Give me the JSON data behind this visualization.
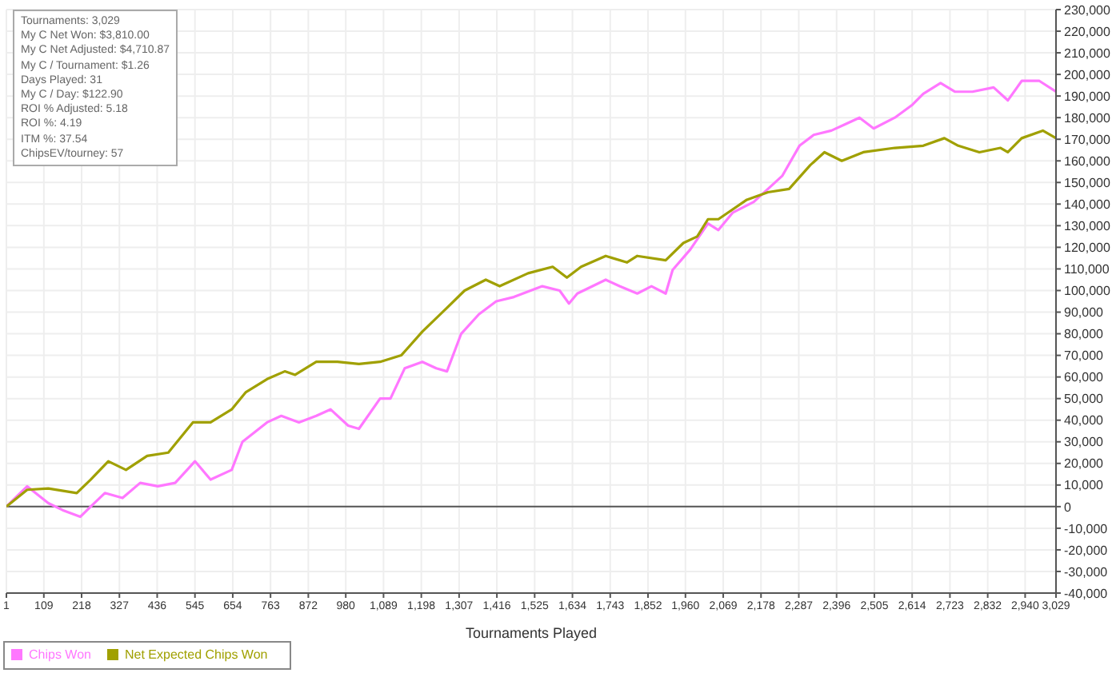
{
  "chart_data": {
    "type": "line",
    "xlabel": "Tournaments Played",
    "annotations": [
      "Tournaments: 3,029",
      "My C Net Won: $3,810.00",
      "My C Net Adjusted: $4,710.87",
      "My C / Tournament: $1.26",
      "Days Played: 31",
      "My C / Day: $122.90",
      "ROI % Adjusted: 5.18",
      "ROI %: 4.19",
      "ITM %: 37.54",
      "ChipsEV/tourney: 57"
    ],
    "xlim": [
      1,
      3029
    ],
    "xticks": [
      1,
      109,
      218,
      327,
      436,
      545,
      654,
      763,
      872,
      980,
      {
        "value": 1089,
        "label": "1,089"
      },
      {
        "value": 1198,
        "label": "1,198"
      },
      {
        "value": 1307,
        "label": "1,307"
      },
      {
        "value": 1416,
        "label": "1,416"
      },
      {
        "value": 1525,
        "label": "1,525"
      },
      {
        "value": 1634,
        "label": "1,634"
      },
      {
        "value": 1743,
        "label": "1,743"
      },
      {
        "value": 1852,
        "label": "1,852"
      },
      {
        "value": 1960,
        "label": "1,960"
      },
      {
        "value": 2069,
        "label": "2,069"
      },
      {
        "value": 2178,
        "label": "2,178"
      },
      {
        "value": 2287,
        "label": "2,287"
      },
      {
        "value": 2396,
        "label": "2,396"
      },
      {
        "value": 2505,
        "label": "2,505"
      },
      {
        "value": 2614,
        "label": "2,614"
      },
      {
        "value": 2723,
        "label": "2,723"
      },
      {
        "value": 2832,
        "label": "2,832"
      },
      {
        "value": 2940,
        "label": "2,940"
      },
      {
        "value": 3029,
        "label": "3,029"
      }
    ],
    "ylim": [
      -40000,
      230000
    ],
    "yticks": [
      {
        "value": -40000,
        "label": "-40,000"
      },
      {
        "value": -30000,
        "label": "-30,000"
      },
      {
        "value": -20000,
        "label": "-20,000"
      },
      {
        "value": -10000,
        "label": "-10,000"
      },
      0,
      {
        "value": 10000,
        "label": "10,000"
      },
      {
        "value": 20000,
        "label": "20,000"
      },
      {
        "value": 30000,
        "label": "30,000"
      },
      {
        "value": 40000,
        "label": "40,000"
      },
      {
        "value": 50000,
        "label": "50,000"
      },
      {
        "value": 60000,
        "label": "60,000"
      },
      {
        "value": 70000,
        "label": "70,000"
      },
      {
        "value": 80000,
        "label": "80,000"
      },
      {
        "value": 90000,
        "label": "90,000"
      },
      {
        "value": 100000,
        "label": "100,000"
      },
      {
        "value": 110000,
        "label": "110,000"
      },
      {
        "value": 120000,
        "label": "120,000"
      },
      {
        "value": 130000,
        "label": "130,000"
      },
      {
        "value": 140000,
        "label": "140,000"
      },
      {
        "value": 150000,
        "label": "150,000"
      },
      {
        "value": 160000,
        "label": "160,000"
      },
      {
        "value": 170000,
        "label": "170,000"
      },
      {
        "value": 180000,
        "label": "180,000"
      },
      {
        "value": 190000,
        "label": "190,000"
      },
      {
        "value": 200000,
        "label": "200,000"
      },
      {
        "value": 210000,
        "label": "210,000"
      },
      {
        "value": 220000,
        "label": "220,000"
      },
      {
        "value": 230000,
        "label": "230,000"
      }
    ],
    "grid": true,
    "legend": "bottom left",
    "marker": "none",
    "line_style": "solid",
    "ref_lines": [
      {
        "axis": "y",
        "value": 0,
        "color": "#555555"
      }
    ],
    "series": [
      {
        "name": "Chips Won",
        "color": "#ff77ff",
        "x": [
          1,
          61,
          122,
          163,
          214,
          244,
          285,
          336,
          387,
          438,
          488,
          545,
          590,
          651,
          682,
          753,
          794,
          845,
          895,
          936,
          987,
          1018,
          1079,
          1109,
          1150,
          1201,
          1241,
          1272,
          1313,
          1364,
          1414,
          1465,
          1547,
          1597,
          1624,
          1648,
          1730,
          1770,
          1821,
          1862,
          1903,
          1923,
          1974,
          2025,
          2055,
          2096,
          2157,
          2198,
          2239,
          2289,
          2330,
          2381,
          2422,
          2462,
          2503,
          2564,
          2615,
          2646,
          2696,
          2737,
          2788,
          2849,
          2890,
          2930,
          2981,
          3029
        ],
        "values": [
          0,
          9400,
          1600,
          -1600,
          -4700,
          0,
          6300,
          4000,
          11000,
          9400,
          11000,
          21000,
          12500,
          17000,
          30000,
          39000,
          42000,
          39000,
          42000,
          45000,
          37500,
          36000,
          50000,
          50000,
          64000,
          67000,
          64000,
          62600,
          80000,
          89000,
          95000,
          97000,
          102000,
          100000,
          94000,
          98600,
          105000,
          102000,
          98600,
          102000,
          98600,
          109500,
          119000,
          131000,
          128000,
          136000,
          141000,
          147000,
          153000,
          167000,
          172000,
          174000,
          177000,
          180000,
          175000,
          180000,
          186000,
          191000,
          196000,
          192000,
          192000,
          194000,
          188000,
          197000,
          197000,
          192000
        ]
      },
      {
        "name": "Net Expected Chips Won",
        "color": "#a0a000",
        "x": [
          1,
          61,
          122,
          204,
          244,
          295,
          346,
          407,
          468,
          539,
          590,
          651,
          692,
          753,
          804,
          834,
          895,
          956,
          1018,
          1079,
          1140,
          1201,
          1272,
          1323,
          1384,
          1424,
          1506,
          1577,
          1618,
          1659,
          1730,
          1791,
          1821,
          1903,
          1954,
          1994,
          2025,
          2055,
          2137,
          2198,
          2259,
          2320,
          2361,
          2411,
          2473,
          2564,
          2646,
          2707,
          2747,
          2808,
          2869,
          2890,
          2930,
          2991,
          3029
        ],
        "values": [
          0,
          7800,
          8400,
          6300,
          12500,
          21000,
          17000,
          23500,
          25000,
          39000,
          39000,
          45000,
          53000,
          59000,
          62600,
          61000,
          67000,
          67000,
          66000,
          67000,
          70000,
          81000,
          92000,
          100000,
          105000,
          102000,
          108000,
          111000,
          106000,
          111000,
          116000,
          113000,
          116000,
          114000,
          122000,
          125000,
          133000,
          133000,
          142000,
          145500,
          147000,
          158000,
          164000,
          160000,
          164000,
          166000,
          167000,
          170500,
          167000,
          164000,
          166000,
          164000,
          170500,
          174000,
          170500
        ]
      }
    ]
  }
}
